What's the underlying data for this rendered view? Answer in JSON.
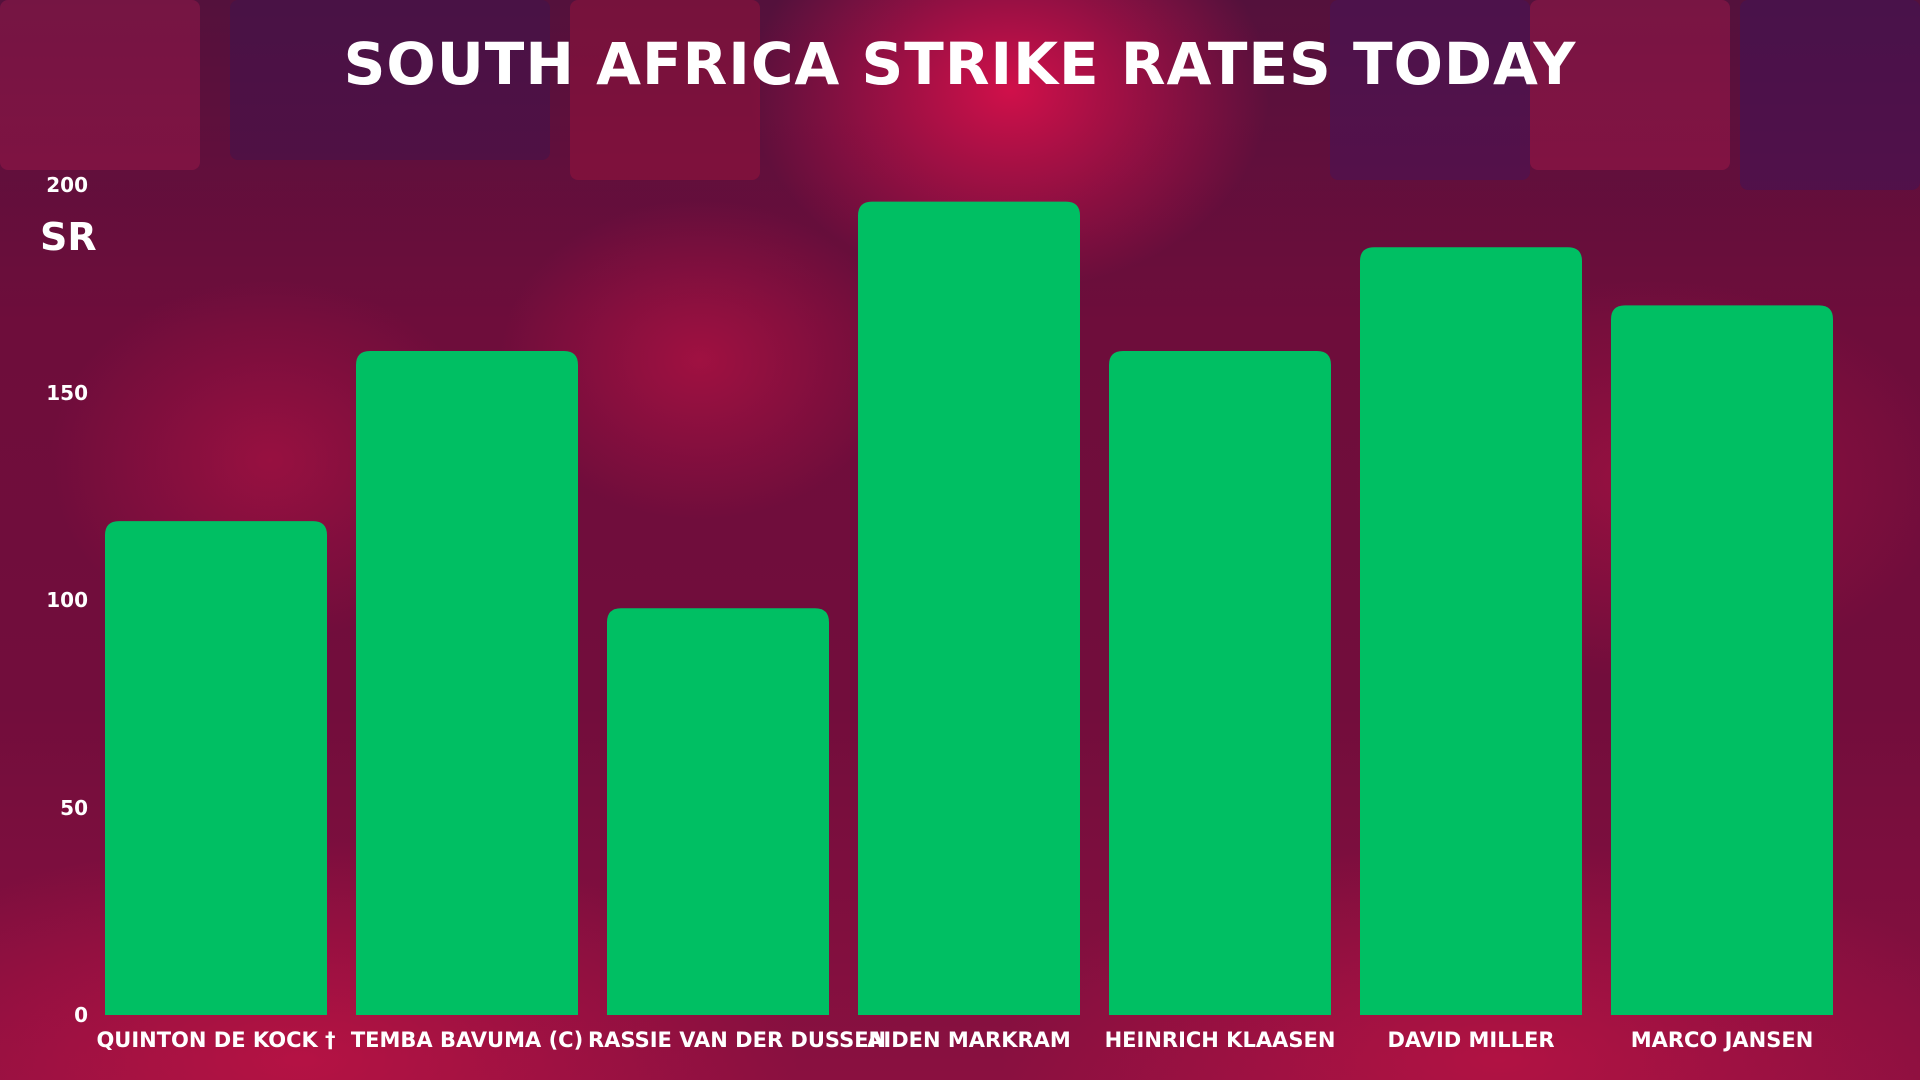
{
  "chart_data": {
    "type": "bar",
    "title": "SOUTH AFRICA STRIKE RATES TODAY",
    "ylabel": "SR",
    "ylim": [
      0,
      200
    ],
    "yticks": [
      "0",
      "50",
      "100",
      "150",
      "200"
    ],
    "categories": [
      "QUINTON DE KOCK †",
      "TEMBA BAVUMA (C)",
      "RASSIE VAN DER DUSSEN",
      "AIDEN MARKRAM",
      "HEINRICH KLAASEN",
      "DAVID MILLER",
      "MARCO JANSEN"
    ],
    "values": [
      119,
      160,
      98,
      196,
      160,
      185,
      171
    ],
    "bar_color": "#00bf63",
    "grid": false
  }
}
